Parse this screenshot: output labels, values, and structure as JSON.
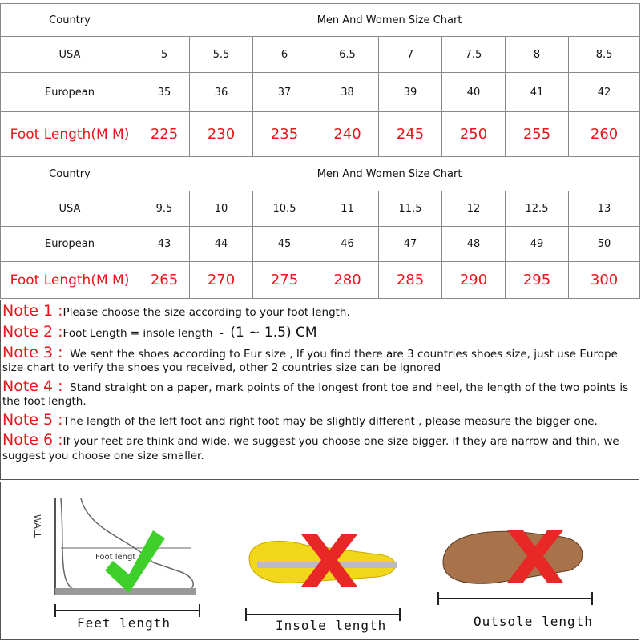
{
  "tables": [
    {
      "country_label": "Country",
      "chart_title": "Men And Women Size Chart",
      "rows": [
        {
          "label": "USA",
          "values": [
            "5",
            "5.5",
            "6",
            "6.5",
            "7",
            "7.5",
            "8",
            "8.5"
          ]
        },
        {
          "label": "European",
          "values": [
            "35",
            "36",
            "37",
            "38",
            "39",
            "40",
            "41",
            "42"
          ]
        },
        {
          "label": "Foot Length(M M)",
          "values": [
            "225",
            "230",
            "235",
            "240",
            "245",
            "250",
            "255",
            "260"
          ]
        }
      ]
    },
    {
      "country_label": "Country",
      "chart_title": "Men And Women Size Chart",
      "rows": [
        {
          "label": "USA",
          "values": [
            "9.5",
            "10",
            "10.5",
            "11",
            "11.5",
            "12",
            "12.5",
            "13"
          ]
        },
        {
          "label": "European",
          "values": [
            "43",
            "44",
            "45",
            "46",
            "47",
            "48",
            "49",
            "50"
          ]
        },
        {
          "label": "Foot Length(M M)",
          "values": [
            "265",
            "270",
            "275",
            "280",
            "285",
            "290",
            "295",
            "300"
          ]
        }
      ]
    }
  ],
  "notes": [
    {
      "label": "Note 1 :",
      "text": "Please choose the size according to your foot length."
    },
    {
      "label": "Note 2 :",
      "text": "Foot Length = insole length  -  ",
      "extra": "(1 ~ 1.5) CM"
    },
    {
      "label": "Note 3 :",
      "text": "  We sent the shoes according to Eur size , If you find there are 3 countries shoes size, just use Europe size chart to verify the shoes you received, other 2 countries size can be ignored"
    },
    {
      "label": "Note 4 :",
      "text": "  Stand straight on a paper, mark points of the longest front toe and heel, the length of the two points is the foot length."
    },
    {
      "label": "Note 5 :",
      "text": "The length of the left foot and right foot may be slightly different , please measure the bigger one."
    },
    {
      "label": "Note 6 :",
      "text": "If your feet are think and wide, we suggest you choose one size bigger. if they are narrow and thin, we suggest you choose one size smaller."
    }
  ],
  "illustrations": {
    "wall_label": "WALL",
    "foot_label": "Foot lengt",
    "captions": [
      "Feet length",
      "Insole length",
      "Outsole length"
    ],
    "marks": [
      "check-icon",
      "cross-icon",
      "cross-icon"
    ]
  },
  "colors": {
    "accent": "#e8161b",
    "check": "#3fcf2a"
  }
}
